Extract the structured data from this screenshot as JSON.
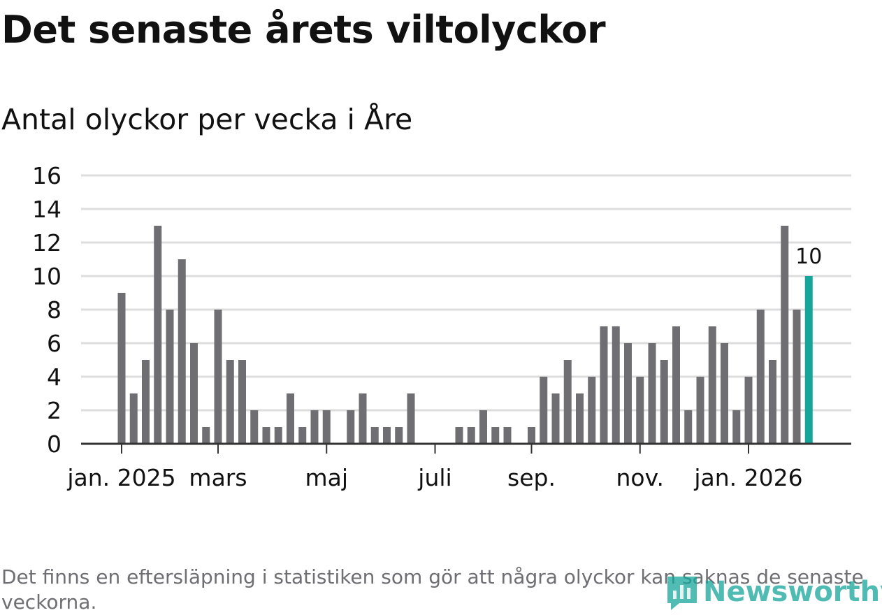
{
  "title": "Det senaste årets viltolyckor",
  "subtitle": "Antal olyckor per vecka i Åre",
  "footnote": "Det finns en eftersläpning i statistiken som gör att några olyckor kan saknas de senaste veckorna.",
  "brand": {
    "name": "Newsworthy",
    "icon": "newsworthy-logo-icon"
  },
  "colors": {
    "bar": "#6e6e73",
    "highlight": "#15a59a",
    "grid": "#dddddd",
    "axis": "#333333",
    "text": "#111111",
    "footnote": "#6e6e73"
  },
  "chart_data": {
    "type": "bar",
    "x_unit": "week",
    "ylim": [
      0,
      16
    ],
    "yticks": [
      0,
      2,
      4,
      6,
      8,
      10,
      12,
      14,
      16
    ],
    "grid": true,
    "xtick_labels": [
      {
        "label": "jan. 2025",
        "at_bar": 0.0
      },
      {
        "label": "mars",
        "at_bar": 8.0
      },
      {
        "label": "maj",
        "at_bar": 17.0
      },
      {
        "label": "juli",
        "at_bar": 26.0
      },
      {
        "label": "sep.",
        "at_bar": 34.0
      },
      {
        "label": "nov.",
        "at_bar": 43.0
      },
      {
        "label": "jan. 2026",
        "at_bar": 52.0
      }
    ],
    "values": [
      9,
      3,
      5,
      13,
      8,
      11,
      6,
      1,
      8,
      5,
      5,
      2,
      1,
      1,
      3,
      1,
      2,
      2,
      0,
      2,
      3,
      1,
      1,
      1,
      3,
      0,
      0,
      0,
      1,
      1,
      2,
      1,
      1,
      0,
      1,
      4,
      3,
      5,
      3,
      4,
      7,
      7,
      6,
      4,
      6,
      5,
      7,
      2,
      4,
      7,
      6,
      2,
      4,
      8,
      5,
      13,
      8,
      10
    ],
    "highlight_index": 57,
    "highlight_label": "10"
  }
}
